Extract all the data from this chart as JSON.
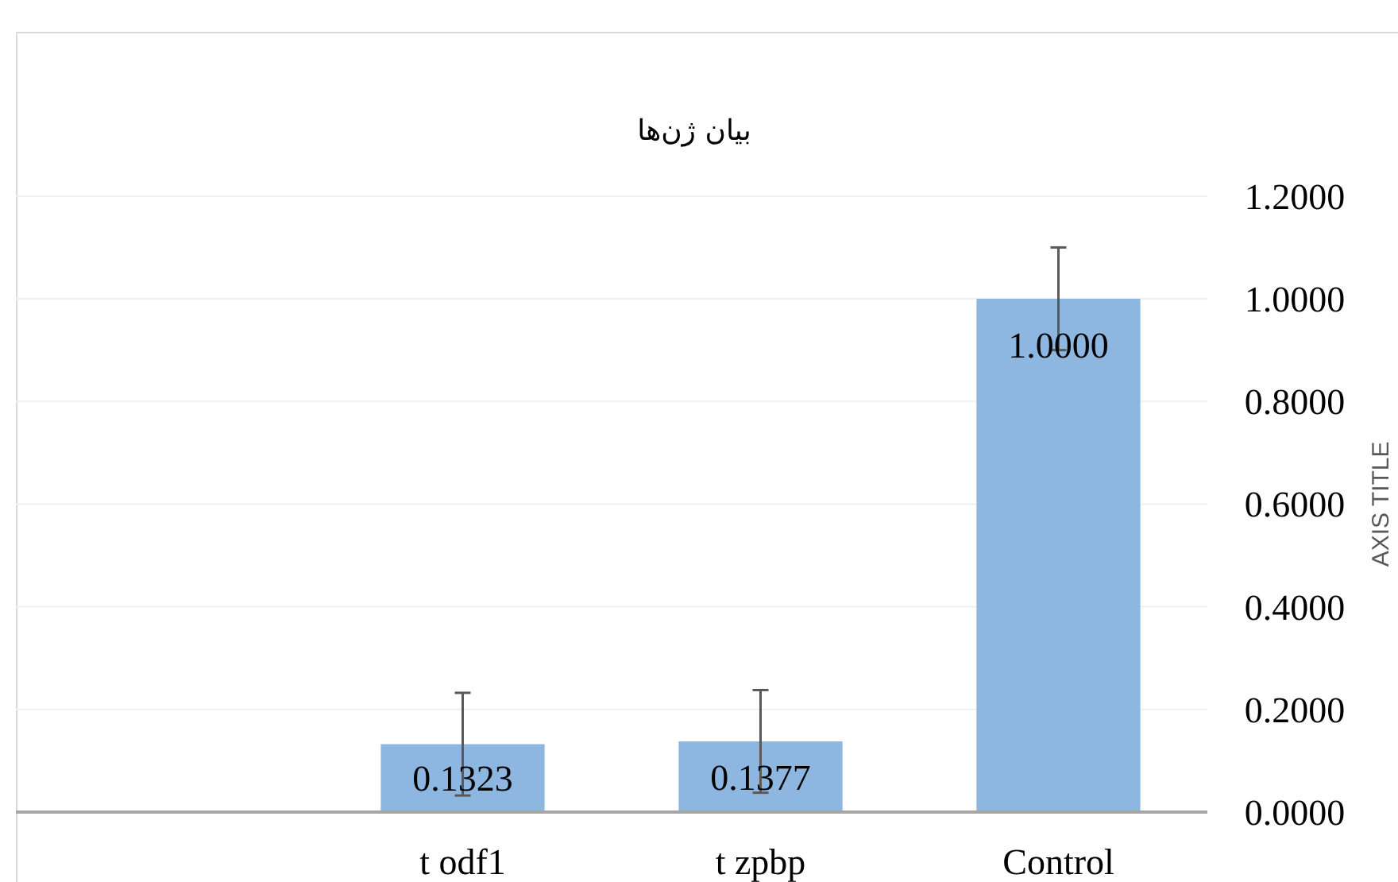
{
  "chart_data": {
    "type": "bar",
    "title": "بیان ژن‌ها",
    "ylabel": "AXIS TITLE",
    "categories": [
      null,
      "t odf1",
      "t zpbp",
      "Control"
    ],
    "values": [
      null,
      0.1323,
      0.1377,
      1.0
    ],
    "errors": [
      null,
      0.1,
      0.1,
      0.1
    ],
    "value_labels": [
      null,
      "0.1323",
      "0.1377",
      "1.0000"
    ],
    "color": "#8db7e0",
    "ylim": [
      0,
      1.2
    ],
    "yticks": [
      {
        "value": 0,
        "label": "0.0000"
      },
      {
        "value": 0.2,
        "label": "0.2000"
      },
      {
        "value": 0.4,
        "label": "0.4000"
      },
      {
        "value": 0.6,
        "label": "0.6000"
      },
      {
        "value": 0.8,
        "label": "0.8000"
      },
      {
        "value": 1.0,
        "label": "1.0000"
      },
      {
        "value": 1.2,
        "label": "1.2000"
      }
    ],
    "grid": "y"
  }
}
